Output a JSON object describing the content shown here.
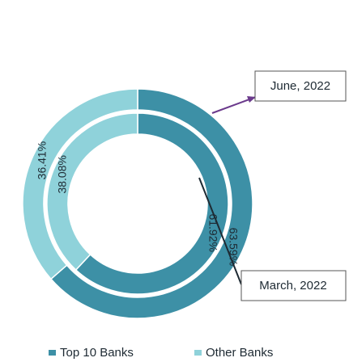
{
  "chart_data": {
    "type": "donut",
    "categories": [
      "Top 10 Banks",
      "Other Banks"
    ],
    "colors": [
      "#3d90a6",
      "#8fd2da"
    ],
    "rings": [
      {
        "name": "June, 2022",
        "values": [
          63.59,
          36.41
        ],
        "value_labels": [
          "63.59%",
          "36.41%"
        ]
      },
      {
        "name": "March, 2022",
        "values": [
          61.92,
          38.08
        ],
        "value_labels": [
          "61.92%",
          "38.08%"
        ]
      }
    ]
  }
}
